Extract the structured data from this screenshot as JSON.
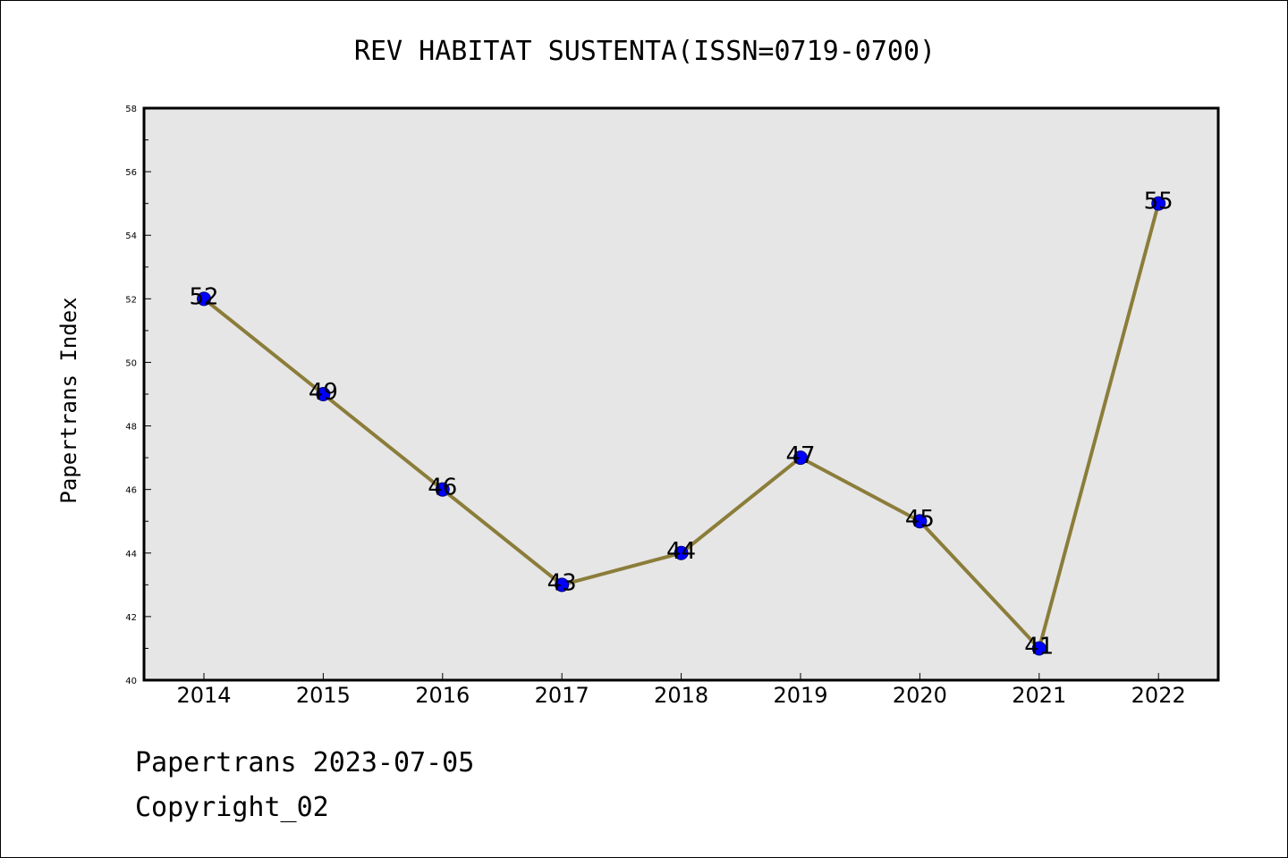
{
  "chart_data": {
    "type": "line",
    "title": "REV HABITAT SUSTENTA(ISSN=0719-0700)",
    "xlabel": "",
    "ylabel": "Papertrans Index",
    "categories": [
      "2014",
      "2015",
      "2016",
      "2017",
      "2018",
      "2019",
      "2020",
      "2021",
      "2022"
    ],
    "series": [
      {
        "values": [
          52,
          49,
          46,
          43,
          44,
          47,
          45,
          41,
          55
        ]
      }
    ],
    "data_labels": [
      "52",
      "49",
      "46",
      "43",
      "44",
      "47",
      "45",
      "41",
      "55"
    ],
    "ylim": [
      40,
      58
    ],
    "y_ticks": [
      40,
      42,
      44,
      46,
      48,
      50,
      52,
      54,
      56,
      58
    ],
    "y_tick_labels": [
      "40",
      "42",
      "44",
      "46",
      "48",
      "50",
      "52",
      "54",
      "56",
      "58"
    ],
    "grid": false,
    "colors": {
      "line": "#8b7d3a",
      "marker": "#0000ff",
      "plot_background": "#e6e6e6"
    }
  },
  "footer": {
    "date_line": "Papertrans 2023-07-05",
    "copyright_line": "Copyright_02"
  }
}
